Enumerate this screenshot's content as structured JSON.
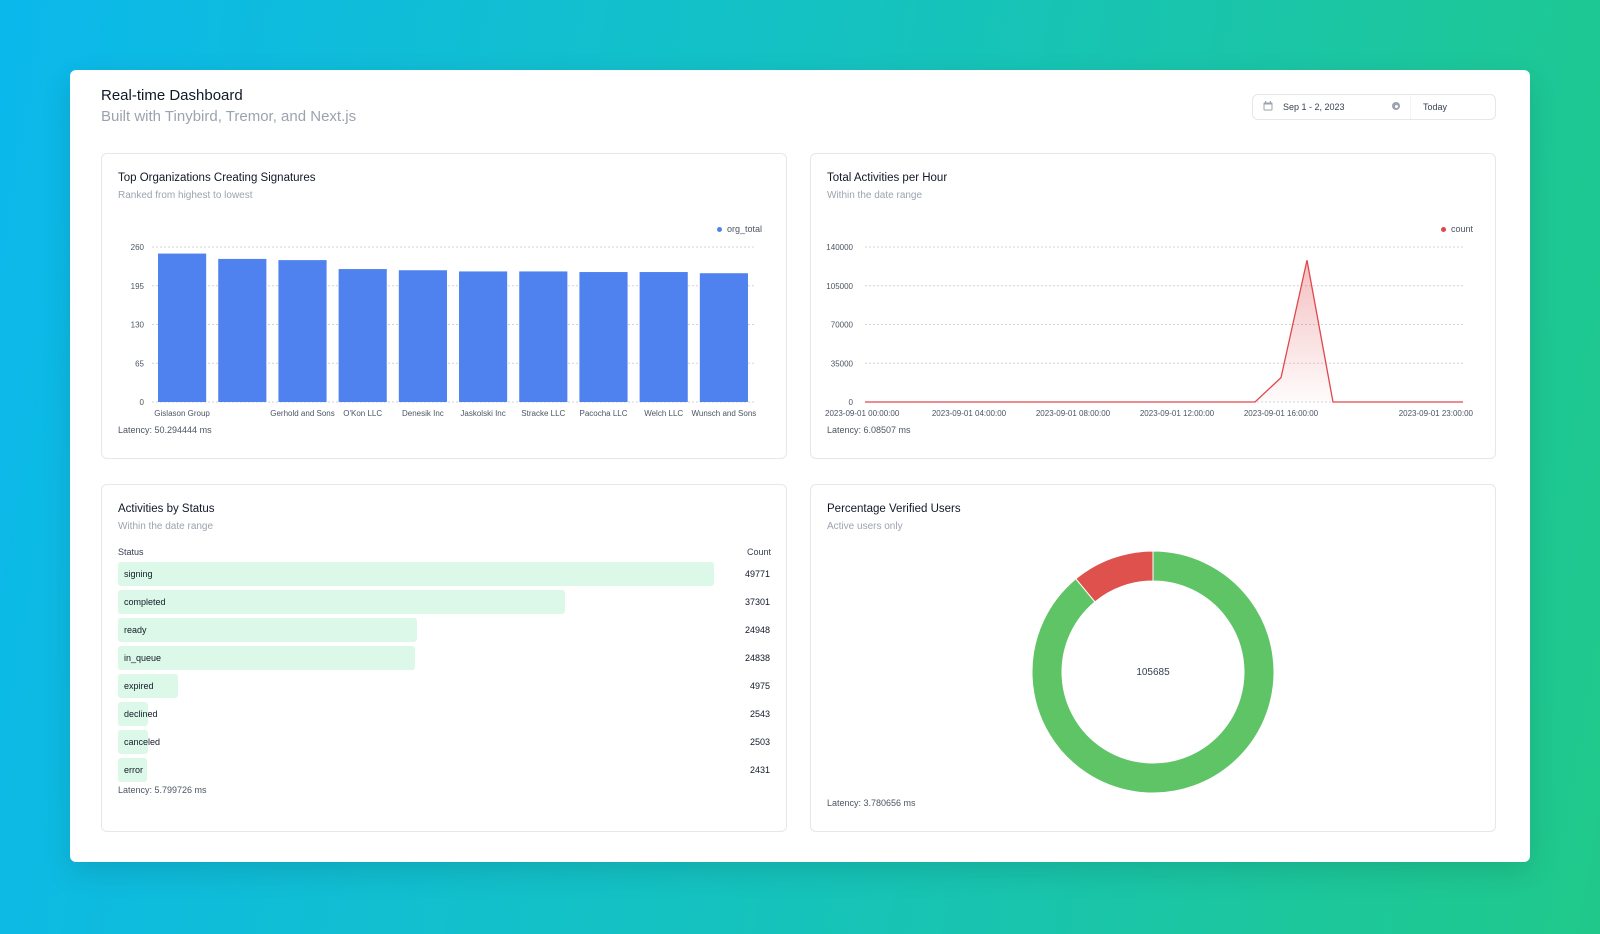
{
  "header": {
    "title": "Real-time Dashboard",
    "subtitle": "Built with Tinybird, Tremor, and Next.js"
  },
  "datepicker": {
    "range": "Sep 1 - 2, 2023",
    "preset": "Today",
    "calendar_icon": "calendar-icon",
    "clear_icon": "clear-icon"
  },
  "orgs_card": {
    "title": "Top Organizations Creating Signatures",
    "subtitle": "Ranked from highest to lowest",
    "latency": "Latency: 50.294444 ms",
    "chart_data": {
      "type": "bar",
      "categories": [
        "Gislason Group",
        "",
        "Gerhold and Sons",
        "O'Kon LLC",
        "Denesik Inc",
        "Jaskolski Inc",
        "Stracke LLC",
        "Pacocha LLC",
        "Welch LLC",
        "Wunsch and Sons"
      ],
      "series": [
        {
          "name": "org_total",
          "values": [
            249,
            240,
            238,
            223,
            221,
            219,
            219,
            218,
            218,
            216
          ],
          "color": "#4f82ee"
        }
      ],
      "y_ticks": [
        0,
        65,
        130,
        195,
        260
      ],
      "ylim": [
        0,
        260
      ],
      "grid": true,
      "legend_position": "top-right"
    }
  },
  "hourly_card": {
    "title": "Total Activities per Hour",
    "subtitle": "Within the date range",
    "latency": "Latency: 6.08507 ms",
    "chart_data": {
      "type": "area",
      "x": [
        "2023-09-01 00:00:00",
        "2023-09-01 01:00:00",
        "2023-09-01 02:00:00",
        "2023-09-01 03:00:00",
        "2023-09-01 04:00:00",
        "2023-09-01 05:00:00",
        "2023-09-01 06:00:00",
        "2023-09-01 07:00:00",
        "2023-09-01 08:00:00",
        "2023-09-01 09:00:00",
        "2023-09-01 10:00:00",
        "2023-09-01 11:00:00",
        "2023-09-01 12:00:00",
        "2023-09-01 13:00:00",
        "2023-09-01 14:00:00",
        "2023-09-01 15:00:00",
        "2023-09-01 16:00:00",
        "2023-09-01 17:00:00",
        "2023-09-01 18:00:00",
        "2023-09-01 19:00:00",
        "2023-09-01 20:00:00",
        "2023-09-01 21:00:00",
        "2023-09-01 22:00:00",
        "2023-09-01 23:00:00"
      ],
      "series": [
        {
          "name": "count",
          "values": [
            0,
            0,
            0,
            0,
            0,
            0,
            0,
            0,
            0,
            0,
            0,
            0,
            0,
            0,
            0,
            0,
            22000,
            128000,
            0,
            0,
            0,
            0,
            0,
            0
          ],
          "color": "#e0474c"
        }
      ],
      "x_tick_labels": [
        "2023-09-01 00:00:00",
        "2023-09-01 04:00:00",
        "2023-09-01 08:00:00",
        "2023-09-01 12:00:00",
        "2023-09-01 16:00:00",
        "2023-09-01 23:00:00"
      ],
      "y_ticks": [
        0,
        35000,
        70000,
        105000,
        140000
      ],
      "ylim": [
        0,
        140000
      ],
      "grid": true,
      "legend_position": "top-right"
    }
  },
  "status_card": {
    "title": "Activities by Status",
    "subtitle": "Within the date range",
    "col_status": "Status",
    "col_count": "Count",
    "latency": "Latency: 5.799726 ms",
    "rows": [
      {
        "status": "signing",
        "count": "49771",
        "value": 49771
      },
      {
        "status": "completed",
        "count": "37301",
        "value": 37301
      },
      {
        "status": "ready",
        "count": "24948",
        "value": 24948
      },
      {
        "status": "in_queue",
        "count": "24838",
        "value": 24838
      },
      {
        "status": "expired",
        "count": "4975",
        "value": 4975
      },
      {
        "status": "declined",
        "count": "2543",
        "value": 2543
      },
      {
        "status": "canceled",
        "count": "2503",
        "value": 2503
      },
      {
        "status": "error",
        "count": "2431",
        "value": 2431
      }
    ]
  },
  "verified_card": {
    "title": "Percentage Verified Users",
    "subtitle": "Active users only",
    "latency": "Latency: 3.780656 ms",
    "center_value": "105685",
    "chart_data": {
      "type": "pie",
      "slices": [
        {
          "value": 0.89,
          "color": "#5fc466"
        },
        {
          "value": 0.11,
          "color": "#df514c"
        }
      ]
    }
  }
}
